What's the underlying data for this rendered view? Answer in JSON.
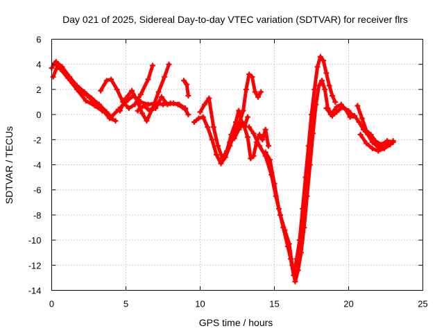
{
  "chart_data": {
    "type": "scatter",
    "title": "Day 021 of 2025, Sidereal Day-to-day VTEC variation (SDTVAR) for receiver flrs",
    "xlabel": "GPS time / hours",
    "ylabel": "SDTVAR / TECUs",
    "xlim": [
      0,
      25
    ],
    "ylim": [
      -14,
      6
    ],
    "xticks": [
      "0",
      "5",
      "10",
      "15",
      "20",
      "25"
    ],
    "yticks": [
      "-14",
      "-12",
      "-10",
      "-8",
      "-6",
      "-4",
      "-2",
      "0",
      "2",
      "4",
      "6"
    ],
    "grid": true,
    "marker": "+",
    "color": "#ff0000",
    "series": [
      {
        "points": [
          [
            0.0,
            3.7
          ],
          [
            0.3,
            4.2
          ],
          [
            0.7,
            3.8
          ],
          [
            1.2,
            3.0
          ],
          [
            1.7,
            2.3
          ],
          [
            2.2,
            1.8
          ],
          [
            2.7,
            1.3
          ],
          [
            3.2,
            0.8
          ],
          [
            3.7,
            0.2
          ],
          [
            4.0,
            -0.2
          ],
          [
            4.5,
            0.4
          ],
          [
            5.0,
            1.0
          ],
          [
            5.5,
            1.5
          ],
          [
            6.0,
            1.0
          ],
          [
            6.5,
            0.8
          ],
          [
            7.0,
            0.9
          ],
          [
            7.5,
            0.8
          ],
          [
            8.0,
            0.9
          ],
          [
            8.5,
            0.8
          ],
          [
            9.0,
            0.4
          ],
          [
            9.2,
            0.0
          ]
        ]
      },
      {
        "points": [
          [
            0.1,
            3.0
          ],
          [
            0.4,
            3.9
          ],
          [
            0.9,
            3.3
          ],
          [
            1.4,
            2.5
          ],
          [
            1.9,
            1.9
          ],
          [
            2.4,
            1.5
          ],
          [
            2.9,
            0.9
          ],
          [
            3.4,
            0.4
          ],
          [
            3.9,
            -0.3
          ],
          [
            4.3,
            -0.5
          ]
        ]
      },
      {
        "points": [
          [
            0.2,
            4.1
          ],
          [
            0.6,
            3.6
          ],
          [
            1.1,
            2.9
          ],
          [
            1.7,
            2.0
          ],
          [
            2.3,
            1.1
          ],
          [
            2.9,
            0.7
          ],
          [
            3.4,
            0.3
          ],
          [
            3.9,
            -0.1
          ]
        ]
      },
      {
        "points": [
          [
            3.3,
            1.9
          ],
          [
            3.7,
            2.7
          ],
          [
            4.0,
            2.8
          ],
          [
            4.4,
            2.0
          ],
          [
            4.8,
            1.0
          ],
          [
            5.2,
            0.5
          ],
          [
            5.6,
            0.8
          ],
          [
            6.0,
            1.6
          ],
          [
            6.5,
            2.8
          ],
          [
            6.8,
            3.9
          ]
        ]
      },
      {
        "points": [
          [
            4.6,
            0.3
          ],
          [
            5.0,
            1.3
          ],
          [
            5.4,
            1.9
          ],
          [
            5.8,
            1.0
          ],
          [
            6.1,
            0.1
          ],
          [
            6.4,
            -0.5
          ],
          [
            6.8,
            0.5
          ],
          [
            7.2,
            1.8
          ],
          [
            7.6,
            3.0
          ],
          [
            7.9,
            4.0
          ]
        ]
      },
      {
        "points": [
          [
            5.8,
            0.3
          ],
          [
            6.2,
            0.7
          ],
          [
            6.6,
            0.3
          ],
          [
            7.0,
            0.5
          ],
          [
            7.4,
            1.4
          ],
          [
            7.8,
            0.8
          ],
          [
            8.2,
            0.9
          ],
          [
            8.6,
            0.8
          ],
          [
            9.0,
            0.5
          ]
        ]
      },
      {
        "points": [
          [
            8.9,
            2.7
          ],
          [
            9.1,
            2.4
          ],
          [
            9.2,
            1.5
          ]
        ]
      },
      {
        "points": [
          [
            9.6,
            -0.6
          ],
          [
            9.9,
            -0.3
          ],
          [
            10.2,
            -0.2
          ],
          [
            10.5,
            -1.0
          ],
          [
            10.8,
            -2.0
          ],
          [
            11.1,
            -3.2
          ],
          [
            11.4,
            -3.9
          ],
          [
            11.7,
            -3.4
          ],
          [
            12.0,
            -2.5
          ],
          [
            12.3,
            -1.5
          ],
          [
            12.6,
            -0.8
          ],
          [
            12.9,
            0.3
          ],
          [
            13.1,
            2.0
          ],
          [
            13.3,
            3.2
          ],
          [
            13.5,
            3.0
          ],
          [
            13.7,
            1.8
          ],
          [
            13.9,
            1.4
          ],
          [
            14.1,
            1.8
          ]
        ]
      },
      {
        "points": [
          [
            10.0,
            0.2
          ],
          [
            10.3,
            0.8
          ],
          [
            10.6,
            1.3
          ],
          [
            10.9,
            -1.0
          ],
          [
            11.2,
            -2.5
          ],
          [
            11.5,
            -3.5
          ],
          [
            11.8,
            -2.9
          ],
          [
            12.1,
            -1.6
          ],
          [
            12.4,
            -0.6
          ],
          [
            12.6,
            0.3
          ],
          [
            12.8,
            -0.6
          ],
          [
            13.0,
            -0.9
          ],
          [
            13.2,
            -0.2
          ]
        ]
      },
      {
        "points": [
          [
            12.0,
            -2.2
          ],
          [
            12.3,
            -1.9
          ],
          [
            12.6,
            -1.2
          ],
          [
            12.9,
            -0.7
          ],
          [
            13.2,
            -1.8
          ],
          [
            13.4,
            -3.5
          ],
          [
            13.6,
            -3.3
          ],
          [
            13.8,
            -2.2
          ],
          [
            14.0,
            -1.6
          ],
          [
            14.2,
            -2.0
          ],
          [
            14.4,
            -1.2
          ],
          [
            14.6,
            -2.5
          ]
        ]
      },
      {
        "points": [
          [
            13.3,
            -1.0
          ],
          [
            13.6,
            -1.5
          ],
          [
            14.0,
            -2.5
          ],
          [
            14.4,
            -3.3
          ],
          [
            14.8,
            -4.8
          ],
          [
            15.1,
            -6.5
          ],
          [
            15.4,
            -8.0
          ],
          [
            15.7,
            -9.2
          ],
          [
            16.0,
            -10.3
          ],
          [
            16.2,
            -12.0
          ],
          [
            16.4,
            -13.3
          ],
          [
            16.6,
            -12.4
          ],
          [
            16.8,
            -11.0
          ],
          [
            17.0,
            -9.0
          ],
          [
            17.2,
            -6.5
          ],
          [
            17.4,
            -4.0
          ],
          [
            17.6,
            -1.5
          ],
          [
            17.8,
            0.8
          ],
          [
            18.0,
            2.3
          ],
          [
            18.2,
            2.7
          ],
          [
            18.4,
            2.0
          ],
          [
            18.6,
            0.5
          ],
          [
            18.9,
            -0.1
          ],
          [
            19.2,
            0.2
          ],
          [
            19.6,
            0.6
          ],
          [
            20.0,
            0.3
          ],
          [
            20.3,
            -0.1
          ]
        ]
      },
      {
        "points": [
          [
            14.4,
            -3.0
          ],
          [
            14.7,
            -3.6
          ],
          [
            15.0,
            -5.5
          ],
          [
            15.3,
            -7.5
          ],
          [
            15.6,
            -9.0
          ],
          [
            15.9,
            -10.5
          ],
          [
            16.1,
            -11.5
          ],
          [
            16.3,
            -12.8
          ],
          [
            16.5,
            -11.5
          ],
          [
            16.7,
            -10.0
          ],
          [
            16.9,
            -7.5
          ],
          [
            17.1,
            -5.0
          ],
          [
            17.3,
            -2.5
          ],
          [
            17.5,
            0.0
          ],
          [
            17.7,
            2.0
          ],
          [
            17.9,
            3.8
          ],
          [
            18.1,
            4.6
          ],
          [
            18.3,
            4.3
          ],
          [
            18.5,
            3.3
          ],
          [
            18.7,
            2.3
          ],
          [
            18.9,
            1.5
          ],
          [
            19.1,
            1.0
          ]
        ]
      },
      {
        "points": [
          [
            18.5,
            0.5
          ],
          [
            18.8,
            0.0
          ],
          [
            19.2,
            0.6
          ],
          [
            19.5,
            0.8
          ],
          [
            19.8,
            0.4
          ],
          [
            20.1,
            -0.2
          ],
          [
            20.4,
            -0.1
          ],
          [
            20.7,
            -0.6
          ],
          [
            21.0,
            -1.2
          ],
          [
            21.3,
            -1.6
          ],
          [
            21.6,
            -2.2
          ],
          [
            22.0,
            -2.6
          ],
          [
            22.4,
            -2.5
          ],
          [
            22.8,
            -2.3
          ],
          [
            23.0,
            -2.1
          ]
        ]
      },
      {
        "points": [
          [
            20.6,
            0.7
          ],
          [
            20.9,
            -0.3
          ],
          [
            21.2,
            -1.3
          ],
          [
            21.5,
            -1.6
          ],
          [
            21.8,
            -2.1
          ],
          [
            22.2,
            -2.4
          ],
          [
            22.6,
            -2.1
          ],
          [
            23.0,
            -2.2
          ]
        ]
      },
      {
        "points": [
          [
            20.8,
            -1.6
          ],
          [
            21.2,
            -2.3
          ],
          [
            21.6,
            -2.7
          ],
          [
            22.0,
            -2.9
          ],
          [
            22.4,
            -2.7
          ],
          [
            22.8,
            -2.4
          ]
        ]
      }
    ]
  }
}
